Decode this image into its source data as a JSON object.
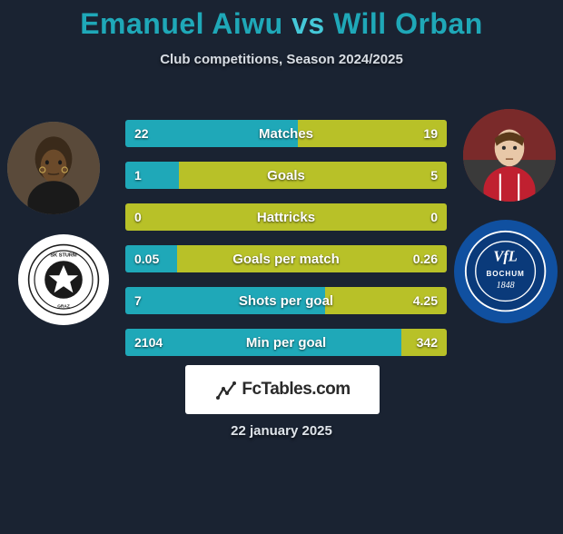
{
  "title": {
    "player1": "Emanuel Aiwu",
    "vs": "vs",
    "player2": "Will Orban"
  },
  "subtitle": "Club competitions, Season 2024/2025",
  "colors": {
    "background": "#1a2332",
    "title_primary": "#1fa8b8",
    "title_vs": "#45c8d8",
    "bar_left": "#1fa8b8",
    "bar_right": "#b8c128",
    "branding_bg": "#ffffff",
    "club_left_bg": "#ffffff",
    "club_right_bg": "#1050a0"
  },
  "stats": [
    {
      "label": "Matches",
      "left_val": "22",
      "right_val": "19",
      "left_pct": 53.7
    },
    {
      "label": "Goals",
      "left_val": "1",
      "right_val": "5",
      "left_pct": 16.7
    },
    {
      "label": "Hattricks",
      "left_val": "0",
      "right_val": "0",
      "left_pct": 0
    },
    {
      "label": "Goals per match",
      "left_val": "0.05",
      "right_val": "0.26",
      "left_pct": 16.1
    },
    {
      "label": "Shots per goal",
      "left_val": "7",
      "right_val": "4.25",
      "left_pct": 62.2
    },
    {
      "label": "Min per goal",
      "left_val": "2104",
      "right_val": "342",
      "left_pct": 86.0
    }
  ],
  "branding": "FcTables.com",
  "date": "22 january 2025",
  "avatars": {
    "left_alt": "emanuel-aiwu-photo",
    "right_alt": "will-orban-photo"
  },
  "clubs": {
    "left_alt": "sk-sturm-graz-badge",
    "right_alt": "vfl-bochum-1848-badge"
  }
}
